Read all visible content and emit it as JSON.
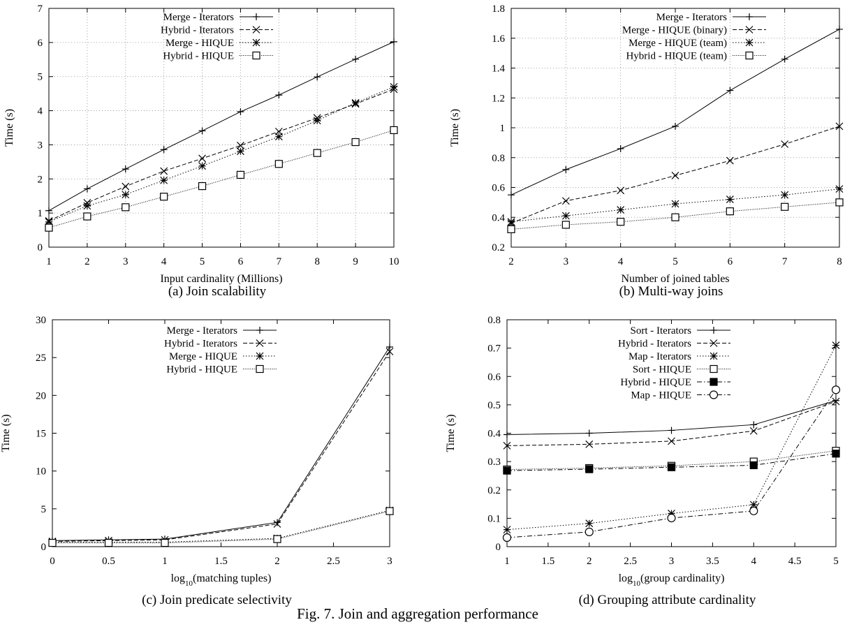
{
  "figure_caption": "Fig. 7.   Join and aggregation performance",
  "chart_data": [
    {
      "type": "line",
      "caption": "(a)  Join scalability",
      "xlabel": "Input cardinality (Millions)",
      "ylabel": "Time (s)",
      "xlim": [
        1,
        10
      ],
      "ylim": [
        0,
        7
      ],
      "xticks": [
        "1",
        "2",
        "3",
        "4",
        "5",
        "6",
        "7",
        "8",
        "9",
        "10"
      ],
      "yticks": [
        "0",
        "1",
        "2",
        "3",
        "4",
        "5",
        "6",
        "7"
      ],
      "grid": true,
      "legend": "top-left",
      "x": [
        1,
        2,
        3,
        4,
        5,
        6,
        7,
        8,
        9,
        10
      ],
      "series": [
        {
          "name": "Merge - Iterators",
          "marker": "plus",
          "dash": "solid",
          "values": [
            1.07,
            1.71,
            2.29,
            2.86,
            3.41,
            3.97,
            4.46,
            4.99,
            5.51,
            6.02
          ]
        },
        {
          "name": "Hybrid - Iterators",
          "marker": "x",
          "dash": "dashed",
          "values": [
            0.77,
            1.3,
            1.78,
            2.23,
            2.6,
            2.98,
            3.39,
            3.79,
            4.2,
            4.63
          ]
        },
        {
          "name": "Merge - HIQUE",
          "marker": "star",
          "dash": "dotted",
          "values": [
            0.74,
            1.21,
            1.54,
            1.96,
            2.38,
            2.81,
            3.24,
            3.71,
            4.23,
            4.7
          ]
        },
        {
          "name": "Hybrid - HIQUE",
          "marker": "square",
          "dash": "densedot",
          "values": [
            0.57,
            0.9,
            1.17,
            1.48,
            1.79,
            2.12,
            2.44,
            2.76,
            3.08,
            3.43
          ]
        }
      ]
    },
    {
      "type": "line",
      "caption": "(b)  Multi-way joins",
      "xlabel": "Number of joined tables",
      "ylabel": "Time (s)",
      "xlim": [
        2,
        8
      ],
      "ylim": [
        0.2,
        1.8
      ],
      "xticks": [
        "2",
        "3",
        "4",
        "5",
        "6",
        "7",
        "8"
      ],
      "yticks": [
        "0.2",
        "0.4",
        "0.6",
        "0.8",
        "1",
        "1.2",
        "1.4",
        "1.6",
        "1.8"
      ],
      "grid": true,
      "legend": "top-left",
      "x": [
        2,
        3,
        4,
        5,
        6,
        7,
        8
      ],
      "series": [
        {
          "name": "Merge - Iterators",
          "marker": "plus",
          "dash": "solid",
          "values": [
            0.55,
            0.72,
            0.86,
            1.01,
            1.25,
            1.46,
            1.66
          ]
        },
        {
          "name": "Merge - HIQUE (binary)",
          "marker": "x",
          "dash": "dashed",
          "values": [
            0.36,
            0.51,
            0.58,
            0.68,
            0.78,
            0.89,
            1.01
          ]
        },
        {
          "name": "Merge - HIQUE (team)",
          "marker": "star",
          "dash": "dotted",
          "values": [
            0.37,
            0.41,
            0.45,
            0.49,
            0.52,
            0.55,
            0.59
          ]
        },
        {
          "name": "Hybrid - HIQUE (team)",
          "marker": "square",
          "dash": "densedot",
          "values": [
            0.32,
            0.35,
            0.37,
            0.4,
            0.44,
            0.47,
            0.5
          ]
        }
      ]
    },
    {
      "type": "line",
      "caption": "(c)  Join predicate selectivity",
      "xlabel": "log10(matching tuples)",
      "ylabel": "Time (s)",
      "xlim": [
        0,
        3
      ],
      "ylim": [
        0,
        30
      ],
      "xticks": [
        "0",
        "0.5",
        "1",
        "1.5",
        "2",
        "2.5",
        "3"
      ],
      "yticks": [
        "0",
        "5",
        "10",
        "15",
        "20",
        "25",
        "30"
      ],
      "grid": false,
      "legend": "top-left",
      "x": [
        0,
        0.5,
        1,
        2,
        3
      ],
      "series": [
        {
          "name": "Merge - Iterators",
          "marker": "plus",
          "dash": "solid",
          "values": [
            0.8,
            0.9,
            1.0,
            3.2,
            26.4
          ]
        },
        {
          "name": "Hybrid - Iterators",
          "marker": "x",
          "dash": "dashed",
          "values": [
            0.7,
            0.8,
            0.9,
            3.0,
            25.8
          ]
        },
        {
          "name": "Merge - HIQUE",
          "marker": "star",
          "dash": "dotted",
          "values": [
            0.6,
            0.6,
            0.6,
            1.1,
            4.8
          ]
        },
        {
          "name": "Hybrid - HIQUE",
          "marker": "square",
          "dash": "densedot",
          "values": [
            0.5,
            0.5,
            0.5,
            1.0,
            4.7
          ]
        }
      ]
    },
    {
      "type": "line",
      "caption": "(d)  Grouping attribute cardinality",
      "xlabel": "log10(group cardinality)",
      "ylabel": "Time (s)",
      "xlim": [
        1,
        5
      ],
      "ylim": [
        0,
        0.8
      ],
      "xticks": [
        "1",
        "1.5",
        "2",
        "2.5",
        "3",
        "3.5",
        "4",
        "4.5",
        "5"
      ],
      "yticks": [
        "0",
        "0.1",
        "0.2",
        "0.3",
        "0.4",
        "0.5",
        "0.6",
        "0.7",
        "0.8"
      ],
      "grid": false,
      "legend": "top-left",
      "x": [
        1,
        2,
        3,
        4,
        5
      ],
      "series": [
        {
          "name": "Sort - Iterators",
          "marker": "plus",
          "dash": "solid",
          "values": [
            0.395,
            0.4,
            0.41,
            0.43,
            0.515
          ]
        },
        {
          "name": "Hybrid - Iterators",
          "marker": "x",
          "dash": "dashed",
          "values": [
            0.356,
            0.361,
            0.372,
            0.408,
            0.512
          ]
        },
        {
          "name": "Map - Iterators",
          "marker": "star",
          "dash": "dotted",
          "values": [
            0.06,
            0.082,
            0.117,
            0.148,
            0.71
          ]
        },
        {
          "name": "Sort - HIQUE",
          "marker": "square",
          "dash": "densedot",
          "values": [
            0.272,
            0.277,
            0.285,
            0.3,
            0.338
          ]
        },
        {
          "name": "Hybrid - HIQUE",
          "marker": "filledsquare",
          "dash": "dashdot",
          "values": [
            0.268,
            0.273,
            0.28,
            0.287,
            0.328
          ]
        },
        {
          "name": "Map - HIQUE",
          "marker": "circle",
          "dash": "dashdot",
          "values": [
            0.032,
            0.052,
            0.101,
            0.126,
            0.553
          ]
        }
      ]
    }
  ]
}
